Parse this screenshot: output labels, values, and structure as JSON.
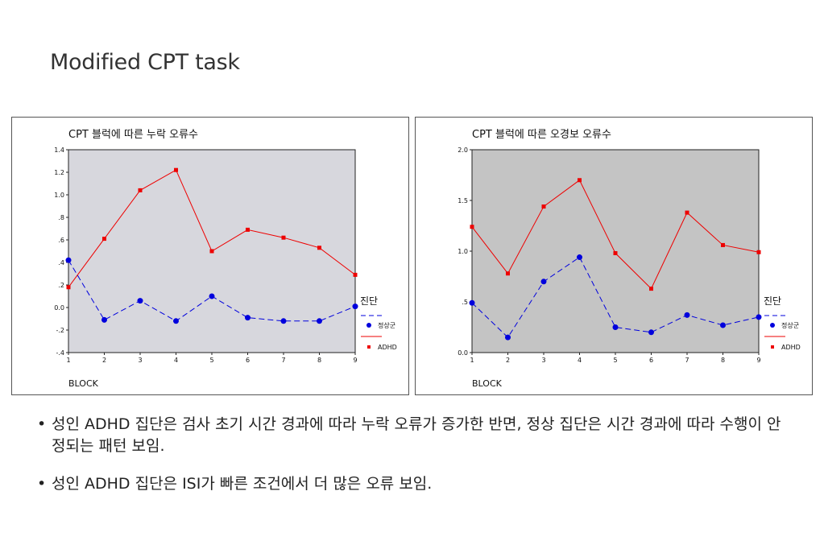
{
  "slide": {
    "title": "Modified CPT task"
  },
  "colors": {
    "normal_series": "#0000dd",
    "adhd_series": "#ee0000",
    "plot_bg_left": "#d7d7dd",
    "plot_bg_right": "#c4c4c4"
  },
  "chart_data": [
    {
      "type": "line",
      "title": "CPT 블럭에 따른 누락 오류수",
      "xlabel": "BLOCK",
      "ylabel": "",
      "x": [
        1,
        2,
        3,
        4,
        5,
        6,
        7,
        8,
        9
      ],
      "ylim": [
        -0.4,
        1.4
      ],
      "yticks": [
        -0.4,
        -0.2,
        0.0,
        0.2,
        0.4,
        0.6,
        0.8,
        1.0,
        1.2,
        1.4
      ],
      "ytick_labels": [
        "-.4",
        "-.2",
        "0.0",
        ".2",
        ".4",
        ".6",
        ".8",
        "1.0",
        "1.2",
        "1.4"
      ],
      "legend_title": "진단",
      "legend_position": "right",
      "grid": false,
      "series": [
        {
          "name": "정상군",
          "style": "dashed",
          "marker": "circle",
          "values": [
            0.42,
            -0.11,
            0.06,
            -0.12,
            0.1,
            -0.09,
            -0.12,
            -0.12,
            0.01
          ]
        },
        {
          "name": "ADHD",
          "style": "solid",
          "marker": "square",
          "values": [
            0.18,
            0.61,
            1.04,
            1.22,
            0.5,
            0.69,
            0.62,
            0.53,
            0.29
          ]
        }
      ]
    },
    {
      "type": "line",
      "title": "CPT 블럭에 따른 오경보 오류수",
      "xlabel": "BLOCK",
      "ylabel": "",
      "x": [
        1,
        2,
        3,
        4,
        5,
        6,
        7,
        8,
        9
      ],
      "ylim": [
        0.0,
        2.0
      ],
      "yticks": [
        0.0,
        0.5,
        1.0,
        1.5,
        2.0
      ],
      "ytick_labels": [
        "0.0",
        ".5",
        "1.0",
        "1.5",
        "2.0"
      ],
      "legend_title": "진단",
      "legend_position": "right",
      "grid": false,
      "series": [
        {
          "name": "정상군",
          "style": "dashed",
          "marker": "circle",
          "values": [
            0.49,
            0.15,
            0.7,
            0.94,
            0.25,
            0.2,
            0.37,
            0.27,
            0.35
          ]
        },
        {
          "name": "ADHD",
          "style": "solid",
          "marker": "square",
          "values": [
            1.24,
            0.78,
            1.44,
            1.7,
            0.98,
            0.63,
            1.38,
            1.06,
            0.99
          ]
        }
      ]
    }
  ],
  "bullets": [
    "성인 ADHD 집단은 검사 초기 시간 경과에 따라 누락 오류가 증가한 반면, 정상 집단은 시간 경과에 따라 수행이 안정되는 패턴 보임.",
    "성인 ADHD 집단은 ISI가 빠른 조건에서 더 많은  오류 보임."
  ]
}
